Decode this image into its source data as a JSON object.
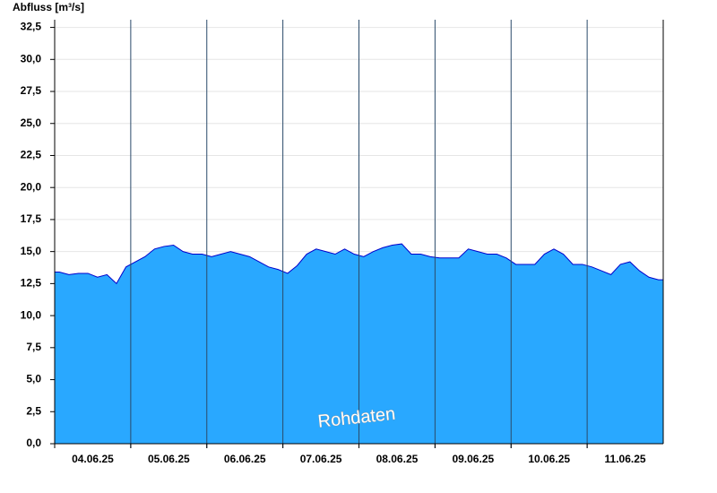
{
  "chart_data": {
    "type": "area",
    "title": "Abfluss [m³/s]",
    "annotation": "Rohdaten",
    "categories": [
      "04.06.25",
      "05.06.25",
      "06.06.25",
      "07.06.25",
      "08.06.25",
      "09.06.25",
      "10.06.25",
      "11.06.25"
    ],
    "values": [
      [
        13.4,
        13.2,
        13.3,
        13.3,
        13.0,
        13.2,
        12.5,
        13.8
      ],
      [
        14.2,
        14.6,
        15.2,
        15.4,
        15.5,
        15.0,
        14.8,
        14.8
      ],
      [
        14.6,
        14.8,
        15.0,
        14.8,
        14.6,
        14.2,
        13.8,
        13.6
      ],
      [
        13.3,
        13.9,
        14.8,
        15.2,
        15.0,
        14.8,
        15.2,
        14.8
      ],
      [
        14.6,
        15.0,
        15.3,
        15.5,
        15.6,
        14.8,
        14.8,
        14.6
      ],
      [
        14.5,
        14.5,
        14.5,
        15.2,
        15.0,
        14.8,
        14.8,
        14.5
      ],
      [
        14.0,
        14.0,
        14.0,
        14.8,
        15.2,
        14.8,
        14.0,
        14.0
      ],
      [
        13.8,
        13.5,
        13.2,
        14.0,
        14.2,
        13.5,
        13.0,
        12.8
      ]
    ],
    "color": "#29a8ff",
    "line_color": "#0000cc",
    "grid": true,
    "ylim": [
      0,
      33.1
    ],
    "yticks": [
      {
        "value": 0,
        "label": "0,0"
      },
      {
        "value": 2.5,
        "label": "2,5"
      },
      {
        "value": 5,
        "label": "5,0"
      },
      {
        "value": 7.5,
        "label": "7,5"
      },
      {
        "value": 10,
        "label": "10,0"
      },
      {
        "value": 12.5,
        "label": "12,5"
      },
      {
        "value": 15,
        "label": "15,0"
      },
      {
        "value": 17.5,
        "label": "17,5"
      },
      {
        "value": 20,
        "label": "20,0"
      },
      {
        "value": 22.5,
        "label": "22,5"
      },
      {
        "value": 25,
        "label": "25,0"
      },
      {
        "value": 27.5,
        "label": "27,5"
      },
      {
        "value": 30,
        "label": "30,0"
      },
      {
        "value": 32.5,
        "label": "32,5"
      }
    ]
  }
}
